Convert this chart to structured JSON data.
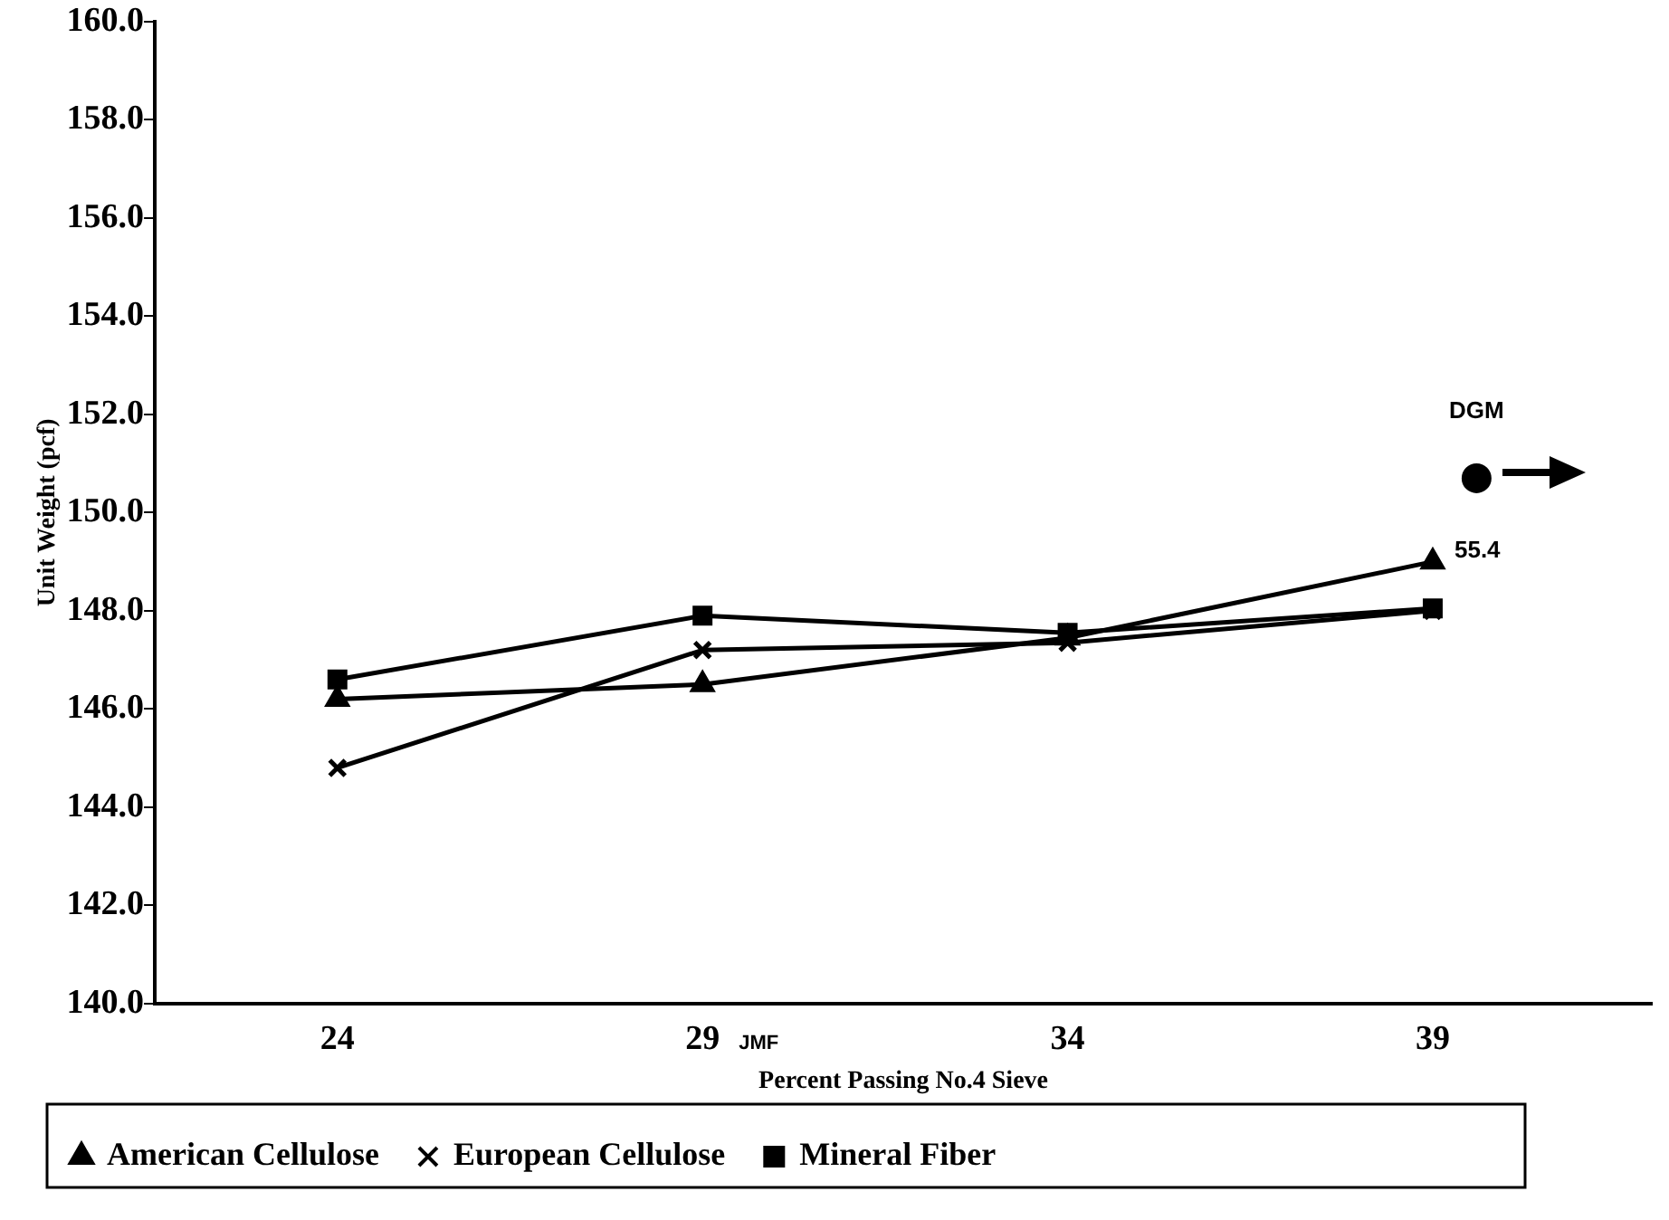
{
  "chart_data": {
    "type": "line",
    "xlabel": "Percent Passing No.4 Sieve",
    "ylabel": "Unit Weight (pcf)",
    "x": [
      24,
      29,
      34,
      39
    ],
    "series": [
      {
        "name": "American Cellulose",
        "color": "#000000",
        "marker": "triangle",
        "values": [
          146.2,
          146.5,
          147.45,
          149.0
        ]
      },
      {
        "name": "European Cellulose",
        "color": "#000000",
        "marker": "cross",
        "values": [
          144.8,
          147.2,
          147.35,
          148.0
        ]
      },
      {
        "name": "Mineral Fiber",
        "color": "#000000",
        "marker": "square",
        "values": [
          146.6,
          147.9,
          147.55,
          148.05
        ]
      },
      {
        "type": "scatter",
        "color": "#000000",
        "marker": "circle",
        "x": [
          39.6
        ],
        "values": [
          150.7
        ]
      }
    ],
    "xlim": [
      21.5,
      42
    ],
    "xticks": [
      24,
      29,
      34,
      39
    ],
    "ylim": [
      140,
      160
    ],
    "yticks": [
      {
        "value": 140,
        "label": "140.0"
      },
      {
        "value": 142,
        "label": "142.0"
      },
      {
        "value": 144,
        "label": "144.0"
      },
      {
        "value": 146,
        "label": "146.0"
      },
      {
        "value": 148,
        "label": "148.0"
      },
      {
        "value": 150,
        "label": "150.0"
      },
      {
        "value": 152,
        "label": "152.0"
      },
      {
        "value": 154,
        "label": "154.0"
      },
      {
        "value": 156,
        "label": "156.0"
      },
      {
        "value": 158,
        "label": "158.0"
      },
      {
        "value": 160,
        "label": "160.0"
      }
    ],
    "annotations": [
      {
        "text": "DGM",
        "x": 39.6,
        "y": 150.7
      },
      {
        "text": "55.4",
        "x": 39,
        "y": 149.0
      },
      "JMF"
    ],
    "grid": false,
    "legend": "bottom",
    "line_style": "solid"
  }
}
